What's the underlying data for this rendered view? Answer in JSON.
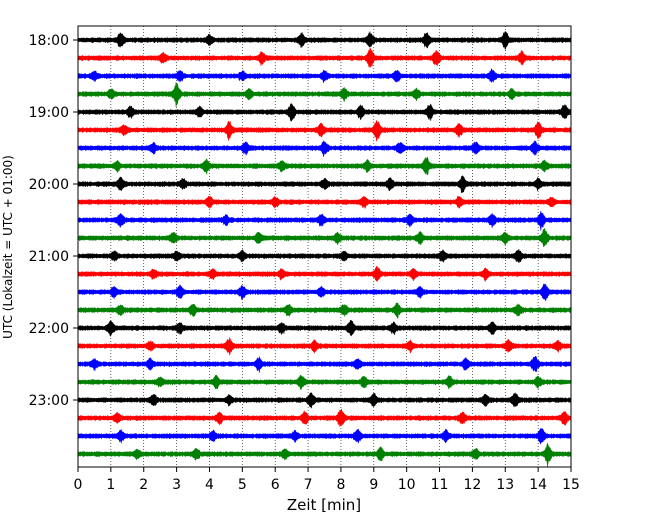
{
  "chart_data": {
    "type": "line",
    "subtype": "helicorder",
    "title": "",
    "xlabel": "Zeit  [min]",
    "ylabel": "UTC (Lokalzeit = UTC + 01:00)",
    "xlim": [
      0,
      15
    ],
    "x_ticks": [
      0,
      1,
      2,
      3,
      4,
      5,
      6,
      7,
      8,
      9,
      10,
      11,
      12,
      13,
      14,
      15
    ],
    "x_tick_labels": [
      "0",
      "1",
      "2",
      "3",
      "4",
      "5",
      "6",
      "7",
      "8",
      "9",
      "10",
      "11",
      "12",
      "13",
      "14",
      "15"
    ],
    "y_tick_labels": [
      "18:00",
      "19:00",
      "20:00",
      "21:00",
      "22:00",
      "23:00"
    ],
    "y_tick_trace_index": [
      0,
      4,
      8,
      12,
      16,
      20
    ],
    "grid": "vertical dotted lines at each minute",
    "trace_minutes": 15,
    "trace_start_times": [
      "18:00",
      "18:15",
      "18:30",
      "18:45",
      "19:00",
      "19:15",
      "19:30",
      "19:45",
      "20:00",
      "20:15",
      "20:30",
      "20:45",
      "21:00",
      "21:15",
      "21:30",
      "21:45",
      "22:00",
      "22:15",
      "22:30",
      "22:45",
      "23:00",
      "23:15",
      "23:30",
      "23:45"
    ],
    "colors": [
      "#000000",
      "#ff0000",
      "#0000ff",
      "#008000"
    ],
    "traces": [
      {
        "bursts": [
          [
            1.3,
            0.45
          ],
          [
            4.0,
            0.35
          ],
          [
            6.8,
            0.45
          ],
          [
            8.9,
            0.5
          ],
          [
            10.6,
            0.5
          ],
          [
            13.0,
            0.55
          ]
        ]
      },
      {
        "bursts": [
          [
            2.6,
            0.35
          ],
          [
            5.6,
            0.4
          ],
          [
            8.9,
            0.6
          ],
          [
            10.9,
            0.5
          ],
          [
            13.5,
            0.4
          ]
        ]
      },
      {
        "bursts": [
          [
            0.5,
            0.3
          ],
          [
            3.1,
            0.35
          ],
          [
            5.0,
            0.3
          ],
          [
            7.5,
            0.35
          ],
          [
            9.7,
            0.35
          ],
          [
            12.6,
            0.4
          ]
        ]
      },
      {
        "bursts": [
          [
            1.0,
            0.3
          ],
          [
            3.0,
            0.75
          ],
          [
            5.2,
            0.3
          ],
          [
            8.1,
            0.4
          ],
          [
            10.3,
            0.35
          ],
          [
            13.2,
            0.3
          ]
        ]
      },
      {
        "bursts": [
          [
            1.6,
            0.35
          ],
          [
            3.7,
            0.3
          ],
          [
            6.5,
            0.55
          ],
          [
            8.6,
            0.45
          ],
          [
            10.7,
            0.5
          ],
          [
            14.8,
            0.5
          ]
        ]
      },
      {
        "bursts": [
          [
            1.4,
            0.35
          ],
          [
            4.6,
            0.55
          ],
          [
            7.4,
            0.4
          ],
          [
            9.1,
            0.65
          ],
          [
            11.6,
            0.4
          ],
          [
            14.0,
            0.6
          ]
        ]
      },
      {
        "bursts": [
          [
            2.3,
            0.3
          ],
          [
            5.1,
            0.4
          ],
          [
            7.5,
            0.45
          ],
          [
            9.8,
            0.4
          ],
          [
            12.1,
            0.4
          ],
          [
            13.9,
            0.5
          ]
        ]
      },
      {
        "bursts": [
          [
            1.2,
            0.3
          ],
          [
            3.9,
            0.4
          ],
          [
            6.2,
            0.35
          ],
          [
            8.8,
            0.4
          ],
          [
            10.6,
            0.6
          ],
          [
            14.2,
            0.35
          ]
        ]
      },
      {
        "bursts": [
          [
            1.3,
            0.45
          ],
          [
            3.2,
            0.35
          ],
          [
            7.5,
            0.35
          ],
          [
            9.5,
            0.4
          ],
          [
            11.7,
            0.55
          ],
          [
            14.0,
            0.35
          ]
        ]
      },
      {
        "bursts": [
          [
            4.0,
            0.35
          ],
          [
            6.0,
            0.3
          ],
          [
            8.7,
            0.35
          ],
          [
            11.6,
            0.35
          ],
          [
            14.4,
            0.3
          ]
        ]
      },
      {
        "bursts": [
          [
            1.3,
            0.45
          ],
          [
            4.5,
            0.3
          ],
          [
            7.4,
            0.35
          ],
          [
            10.1,
            0.35
          ],
          [
            12.6,
            0.4
          ],
          [
            14.1,
            0.55
          ]
        ]
      },
      {
        "bursts": [
          [
            2.9,
            0.35
          ],
          [
            5.5,
            0.4
          ],
          [
            7.9,
            0.3
          ],
          [
            10.4,
            0.35
          ],
          [
            13.0,
            0.35
          ],
          [
            14.2,
            0.6
          ]
        ]
      },
      {
        "bursts": [
          [
            1.1,
            0.3
          ],
          [
            3.0,
            0.3
          ],
          [
            5.0,
            0.35
          ],
          [
            8.1,
            0.3
          ],
          [
            11.1,
            0.35
          ],
          [
            13.4,
            0.4
          ]
        ]
      },
      {
        "bursts": [
          [
            2.3,
            0.3
          ],
          [
            4.1,
            0.3
          ],
          [
            6.2,
            0.3
          ],
          [
            9.1,
            0.45
          ],
          [
            10.2,
            0.3
          ],
          [
            12.4,
            0.35
          ]
        ]
      },
      {
        "bursts": [
          [
            1.1,
            0.35
          ],
          [
            3.1,
            0.4
          ],
          [
            5.0,
            0.4
          ],
          [
            7.4,
            0.35
          ],
          [
            10.4,
            0.35
          ],
          [
            14.2,
            0.55
          ]
        ]
      },
      {
        "bursts": [
          [
            1.3,
            0.3
          ],
          [
            3.5,
            0.4
          ],
          [
            6.4,
            0.35
          ],
          [
            8.1,
            0.35
          ],
          [
            9.7,
            0.45
          ],
          [
            13.4,
            0.35
          ]
        ]
      },
      {
        "bursts": [
          [
            1.0,
            0.45
          ],
          [
            3.1,
            0.35
          ],
          [
            6.2,
            0.35
          ],
          [
            8.3,
            0.5
          ],
          [
            9.6,
            0.35
          ],
          [
            12.6,
            0.4
          ]
        ]
      },
      {
        "bursts": [
          [
            2.2,
            0.3
          ],
          [
            4.6,
            0.55
          ],
          [
            7.2,
            0.35
          ],
          [
            10.1,
            0.3
          ],
          [
            13.1,
            0.4
          ],
          [
            14.6,
            0.3
          ]
        ]
      },
      {
        "bursts": [
          [
            0.5,
            0.3
          ],
          [
            2.2,
            0.35
          ],
          [
            5.5,
            0.4
          ],
          [
            8.5,
            0.35
          ],
          [
            11.8,
            0.35
          ],
          [
            13.9,
            0.55
          ]
        ]
      },
      {
        "bursts": [
          [
            2.5,
            0.3
          ],
          [
            4.2,
            0.4
          ],
          [
            6.8,
            0.45
          ],
          [
            8.7,
            0.35
          ],
          [
            11.3,
            0.35
          ],
          [
            14.0,
            0.35
          ]
        ]
      },
      {
        "bursts": [
          [
            2.3,
            0.35
          ],
          [
            4.6,
            0.3
          ],
          [
            7.1,
            0.5
          ],
          [
            9.0,
            0.45
          ],
          [
            12.4,
            0.35
          ],
          [
            13.3,
            0.45
          ]
        ]
      },
      {
        "bursts": [
          [
            1.2,
            0.3
          ],
          [
            4.3,
            0.35
          ],
          [
            6.9,
            0.4
          ],
          [
            8.0,
            0.65
          ],
          [
            11.7,
            0.35
          ],
          [
            14.8,
            0.45
          ]
        ]
      },
      {
        "bursts": [
          [
            1.3,
            0.35
          ],
          [
            4.1,
            0.3
          ],
          [
            6.6,
            0.3
          ],
          [
            8.5,
            0.45
          ],
          [
            11.2,
            0.4
          ],
          [
            14.1,
            0.6
          ]
        ]
      },
      {
        "bursts": [
          [
            1.8,
            0.3
          ],
          [
            3.6,
            0.35
          ],
          [
            6.3,
            0.3
          ],
          [
            9.2,
            0.45
          ],
          [
            12.1,
            0.35
          ],
          [
            14.3,
            0.7
          ]
        ]
      }
    ]
  }
}
